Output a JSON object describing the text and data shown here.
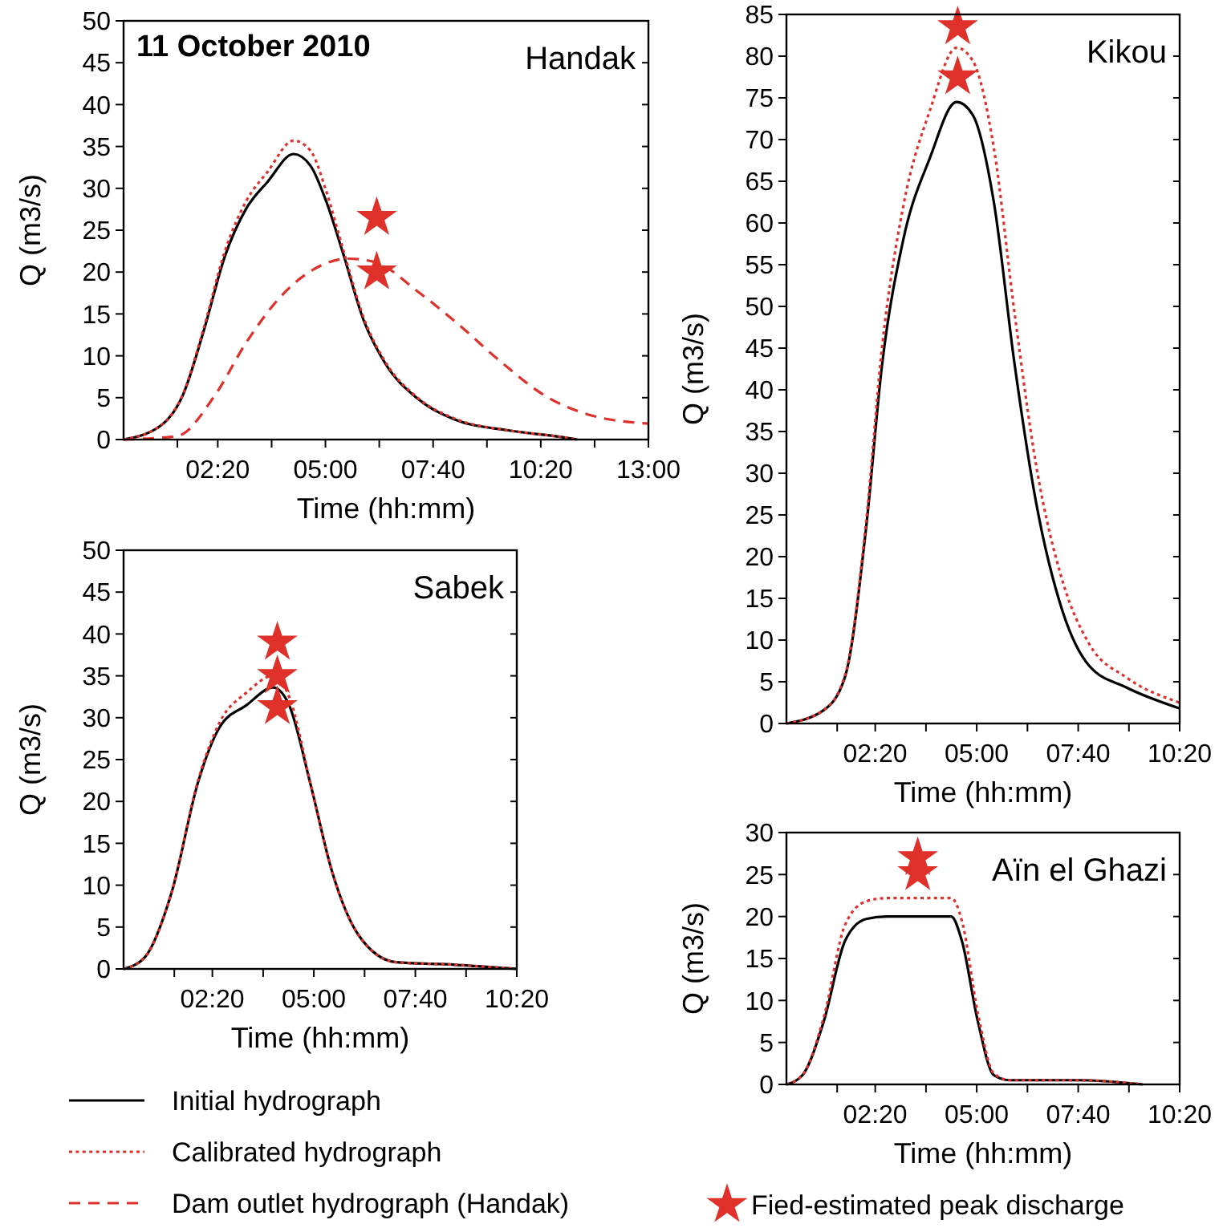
{
  "chart_data": [
    {
      "type": "line",
      "title": "Handak",
      "annotations": [
        "11 October 2010"
      ],
      "xlabel": "Time (hh:mm)",
      "ylabel": "Q (m3/s)",
      "xlim": [
        0,
        13
      ],
      "ylim": [
        0,
        50
      ],
      "yticks": [
        0,
        5,
        10,
        15,
        20,
        25,
        30,
        35,
        40,
        45,
        50
      ],
      "xticks": [
        {
          "value": 1.333,
          "label": null
        },
        {
          "value": 2.333,
          "label": "02:20"
        },
        {
          "value": 3.667,
          "label": null
        },
        {
          "value": 5,
          "label": "05:00"
        },
        {
          "value": 6.333,
          "label": null
        },
        {
          "value": 7.667,
          "label": "07:40"
        },
        {
          "value": 9,
          "label": null
        },
        {
          "value": 10.333,
          "label": "10:20"
        },
        {
          "value": 11.667,
          "label": null
        },
        {
          "value": 13,
          "label": "13:00"
        }
      ],
      "legend": "bottom",
      "series": [
        {
          "name": "Initial hydrograph",
          "color": "#000000",
          "line_style": "solid",
          "x": [
            0,
            0.93,
            1.46,
            1.98,
            2.51,
            3.04,
            3.57,
            4.21,
            4.63,
            5.03,
            5.42,
            5.95,
            6.48,
            7.28,
            8.2,
            9.52,
            10.85,
            11.24
          ],
          "values": [
            0,
            1.7,
            5.2,
            12.9,
            21.9,
            27.6,
            30.8,
            34.1,
            32.7,
            28.3,
            22.5,
            14.2,
            9.1,
            4.9,
            2.4,
            1.1,
            0.3,
            0
          ]
        },
        {
          "name": "Calibrated hydrograph",
          "color": "#e0302a",
          "line_style": "dotted",
          "x": [
            0,
            0.93,
            1.46,
            1.98,
            2.51,
            3.04,
            3.57,
            4.21,
            4.63,
            5.03,
            5.42,
            5.95,
            6.48,
            7.28,
            8.2,
            9.52,
            10.85,
            11.24
          ],
          "values": [
            0,
            1.7,
            5.3,
            13.2,
            22.5,
            28.5,
            32,
            35.7,
            34.5,
            29.5,
            23,
            14.5,
            9.3,
            5,
            2.5,
            1.1,
            0.3,
            0
          ]
        },
        {
          "name": "Dam outlet hydrograph (Handak)",
          "color": "#e0302a",
          "line_style": "dashed",
          "x": [
            0,
            1.32,
            2.25,
            3.04,
            3.84,
            4.63,
            5.56,
            6.22,
            7.28,
            8.33,
            9.39,
            10.45,
            11.5,
            13
          ],
          "values": [
            0,
            0.4,
            5.2,
            11.6,
            16.8,
            20.1,
            21.6,
            21.2,
            17.7,
            13.6,
            9.1,
            5.2,
            3,
            1.9
          ]
        },
        {
          "name": "Fied-estimated peak discharge",
          "type": "scatter",
          "marker": "star",
          "color": "#e0302a",
          "x": [
            6.27,
            6.27
          ],
          "values": [
            26.5,
            20
          ]
        }
      ]
    },
    {
      "type": "line",
      "title": "Kikou",
      "ylabel": "Q (m3/s)",
      "xlim": [
        0,
        10.333
      ],
      "ylim": [
        0,
        85
      ],
      "yticks": [
        0,
        5,
        10,
        15,
        20,
        25,
        30,
        35,
        40,
        45,
        50,
        55,
        60,
        65,
        70,
        75,
        80,
        85
      ],
      "xticks": [
        {
          "value": 1.333,
          "label": null
        },
        {
          "value": 2.333,
          "label": "02:20"
        },
        {
          "value": 3.667,
          "label": null
        },
        {
          "value": 5,
          "label": "05:00"
        },
        {
          "value": 6.333,
          "label": null
        },
        {
          "value": 7.667,
          "label": "07:40"
        },
        {
          "value": 9,
          "label": null
        },
        {
          "value": 10.333,
          "label": "10:20"
        }
      ],
      "xlabel": "Time (hh:mm)",
      "series": [
        {
          "color": "#000000",
          "line_style": "solid",
          "x": [
            0,
            0.98,
            1.54,
            2.09,
            2.51,
            3.07,
            3.77,
            4.47,
            4.89,
            5.45,
            6,
            6.56,
            7.26,
            7.96,
            8.94,
            10.333
          ],
          "values": [
            0,
            1.6,
            5.6,
            23.3,
            42.9,
            58,
            67.8,
            74.5,
            73,
            62.5,
            42.9,
            26.5,
            13.4,
            6.9,
            4.3,
            1.8
          ]
        },
        {
          "color": "#e0302a",
          "line_style": "dotted",
          "x": [
            0,
            0.98,
            1.54,
            2.09,
            2.51,
            3.07,
            3.77,
            4.47,
            4.89,
            5.45,
            6,
            6.56,
            7.26,
            7.96,
            8.94,
            10.333
          ],
          "values": [
            0,
            1.6,
            5.8,
            24,
            45,
            62,
            73.5,
            81,
            79.5,
            69,
            49,
            31,
            17,
            9.5,
            5.5,
            2.5
          ]
        },
        {
          "type": "scatter",
          "marker": "star",
          "color": "#e0302a",
          "x": [
            4.5,
            4.5
          ],
          "values": [
            83.5,
            77.5
          ]
        }
      ]
    },
    {
      "type": "line",
      "title": "Sabek",
      "xlabel": "Time (hh:mm)",
      "ylabel": "Q (m3/s)",
      "xlim": [
        0,
        10.333
      ],
      "ylim": [
        0,
        50
      ],
      "yticks": [
        0,
        5,
        10,
        15,
        20,
        25,
        30,
        35,
        40,
        45,
        50
      ],
      "xticks": [
        {
          "value": 1.333,
          "label": null
        },
        {
          "value": 2.333,
          "label": "02:20"
        },
        {
          "value": 3.667,
          "label": null
        },
        {
          "value": 5,
          "label": "05:00"
        },
        {
          "value": 6.333,
          "label": null
        },
        {
          "value": 7.667,
          "label": "07:40"
        },
        {
          "value": 9,
          "label": null
        },
        {
          "value": 10.333,
          "label": "10:20"
        }
      ],
      "series": [
        {
          "color": "#000000",
          "line_style": "solid",
          "x": [
            0,
            0.56,
            1.26,
            1.97,
            2.53,
            3.23,
            3.93,
            4.35,
            4.92,
            5.48,
            6.18,
            7.16,
            8.71,
            10.333
          ],
          "values": [
            0,
            1.4,
            9.1,
            22.5,
            28.9,
            31.5,
            33.6,
            31.5,
            21.9,
            11.6,
            4,
            0.8,
            0.5,
            0
          ]
        },
        {
          "color": "#e0302a",
          "line_style": "dotted",
          "x": [
            0,
            0.56,
            1.26,
            1.97,
            2.53,
            3.23,
            3.93,
            4.35,
            4.92,
            5.48,
            6.18,
            7.16,
            8.71,
            10.333
          ],
          "values": [
            0,
            1.4,
            9.1,
            22.7,
            29.5,
            33,
            35,
            32.5,
            22,
            11.6,
            4,
            0.8,
            0.5,
            0
          ]
        },
        {
          "type": "scatter",
          "marker": "star",
          "color": "#e0302a",
          "x": [
            4.04,
            4.04,
            4.04
          ],
          "values": [
            39,
            35,
            31.3
          ]
        }
      ]
    },
    {
      "type": "line",
      "title": "Aïn el Ghazi",
      "xlabel": "Time (hh:mm)",
      "ylabel": "Q (m3/s)",
      "xlim": [
        0,
        10.333
      ],
      "ylim": [
        0,
        30
      ],
      "yticks": [
        0,
        5,
        10,
        15,
        20,
        25,
        30
      ],
      "xticks": [
        {
          "value": 1.333,
          "label": null
        },
        {
          "value": 2.333,
          "label": "02:20"
        },
        {
          "value": 3.667,
          "label": null
        },
        {
          "value": 5,
          "label": "05:00"
        },
        {
          "value": 6.333,
          "label": null
        },
        {
          "value": 7.667,
          "label": "07:40"
        },
        {
          "value": 9,
          "label": null
        },
        {
          "value": 10.333,
          "label": "10:20"
        }
      ],
      "series": [
        {
          "color": "#000000",
          "line_style": "solid",
          "x": [
            0,
            0.42,
            0.98,
            1.54,
            2.09,
            2.65,
            4.33,
            4.61,
            5.03,
            5.45,
            5.87,
            7.68,
            9.36
          ],
          "values": [
            0,
            1.1,
            7.5,
            17.1,
            19.7,
            20,
            20,
            17.1,
            7.5,
            1.1,
            0.5,
            0.5,
            0
          ]
        },
        {
          "color": "#e0302a",
          "line_style": "dotted",
          "x": [
            0,
            0.42,
            0.98,
            1.54,
            2.09,
            2.65,
            4.33,
            4.61,
            5.03,
            5.45,
            5.87,
            7.68,
            9.36
          ],
          "values": [
            0,
            1.1,
            8,
            19,
            21.8,
            22.2,
            22.2,
            19.5,
            8.5,
            1.3,
            0.5,
            0.5,
            0
          ]
        },
        {
          "type": "scatter",
          "marker": "star",
          "color": "#e0302a",
          "x": [
            3.45,
            3.45
          ],
          "values": [
            27,
            25.2
          ]
        }
      ]
    }
  ]
}
